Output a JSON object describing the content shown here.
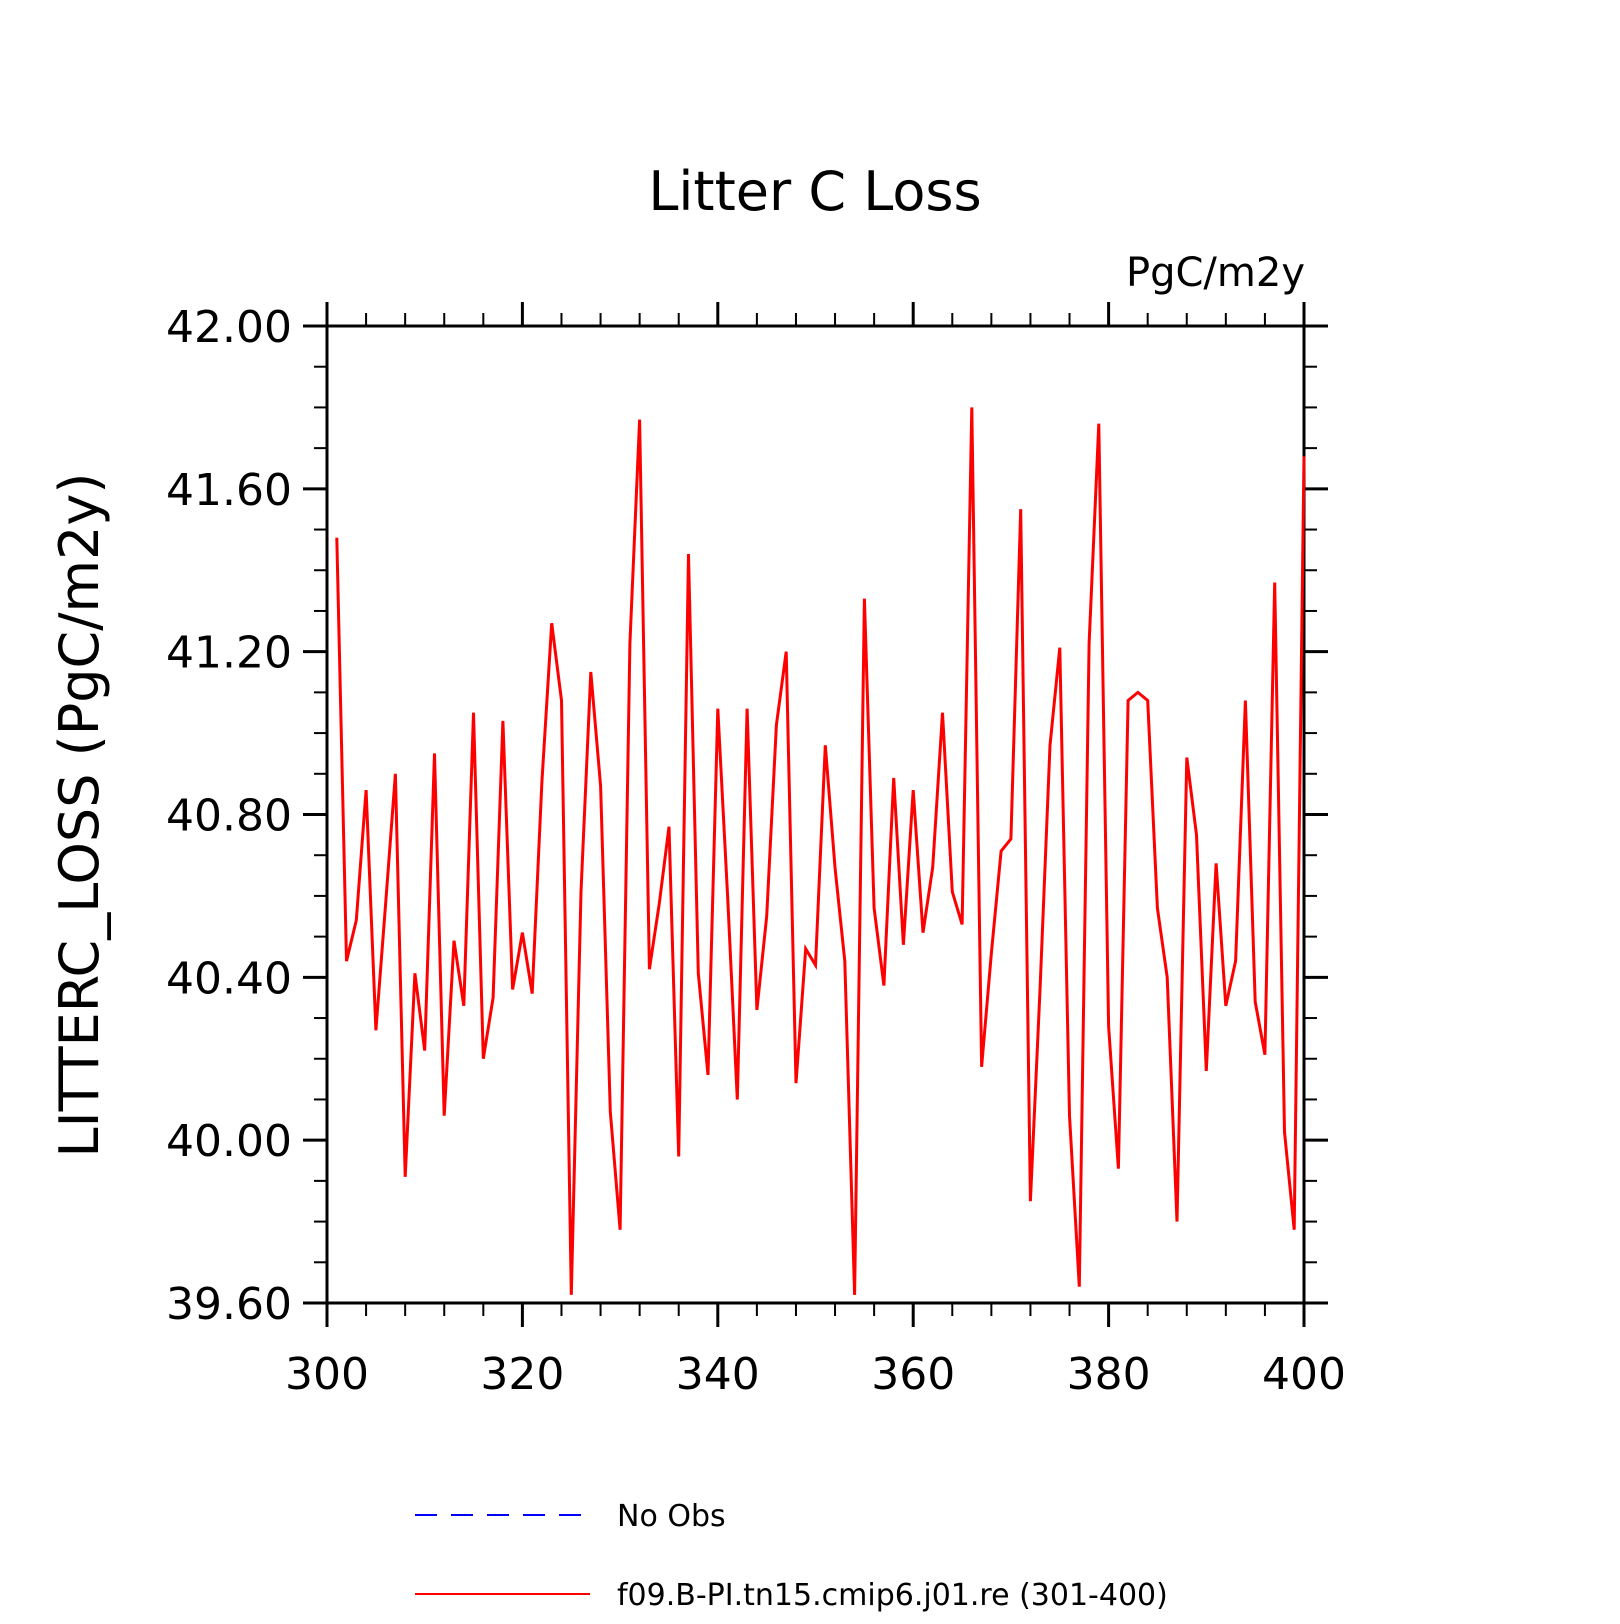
{
  "chart_data": {
    "type": "line",
    "title": "Litter C Loss",
    "units_label": "PgC/m2y",
    "ylabel": "LITTERC_LOSS  (PgC/m2y)",
    "xlabel": "",
    "xlim": [
      300,
      400
    ],
    "ylim": [
      39.6,
      42.0
    ],
    "x_ticks": [
      300,
      320,
      340,
      360,
      380,
      400
    ],
    "x_tick_labels": [
      "300",
      "320",
      "340",
      "360",
      "380",
      "400"
    ],
    "y_ticks": [
      39.6,
      40.0,
      40.4,
      40.8,
      41.2,
      41.6,
      42.0
    ],
    "y_tick_labels": [
      "39.60",
      "40.00",
      "40.40",
      "40.80",
      "41.20",
      "41.60",
      "42.00"
    ],
    "x_minor_step": 4,
    "y_minor_step": 0.1,
    "grid": false,
    "legend_position": "bottom",
    "series": [
      {
        "name": "f09.B-PI.tn15.cmip6.j01.re (301-400)",
        "color": "#ff0000",
        "x_start": 301,
        "x_step": 1,
        "values": [
          41.48,
          40.44,
          40.54,
          40.86,
          40.27,
          40.58,
          40.9,
          39.91,
          40.41,
          40.22,
          40.95,
          40.06,
          40.49,
          40.33,
          41.05,
          40.2,
          40.35,
          41.03,
          40.37,
          40.51,
          40.36,
          40.88,
          41.27,
          41.08,
          39.62,
          40.61,
          41.15,
          40.87,
          40.07,
          39.78,
          41.22,
          41.77,
          40.42,
          40.58,
          40.77,
          39.96,
          41.44,
          40.41,
          40.16,
          41.06,
          40.6,
          40.1,
          41.06,
          40.32,
          40.55,
          41.02,
          41.2,
          40.14,
          40.47,
          40.43,
          40.97,
          40.67,
          40.44,
          39.62,
          41.33,
          40.57,
          40.38,
          40.89,
          40.48,
          40.86,
          40.51,
          40.67,
          41.05,
          40.61,
          40.53,
          41.8,
          40.18,
          40.46,
          40.71,
          40.74,
          41.55,
          39.85,
          40.38,
          40.97,
          41.21,
          40.06,
          39.64,
          41.22,
          41.76,
          40.28,
          39.93,
          41.08,
          41.1,
          41.08,
          40.57,
          40.4,
          39.8,
          40.94,
          40.75,
          40.17,
          40.68,
          40.33,
          40.44,
          41.08,
          40.34,
          40.21,
          41.37,
          40.02,
          39.78,
          41.68
        ]
      }
    ],
    "legend": [
      {
        "label": "No Obs",
        "color": "#0000ff",
        "dash": "dashed"
      },
      {
        "label": "f09.B-PI.tn15.cmip6.j01.re (301-400)",
        "color": "#ff0000",
        "dash": "solid"
      }
    ]
  }
}
